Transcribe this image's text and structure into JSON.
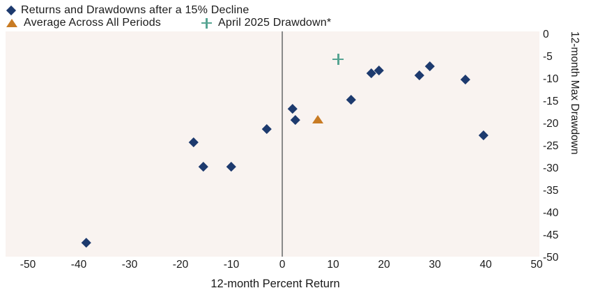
{
  "legend": {
    "series1": "Returns and Drawdowns after a 15% Decline",
    "series2": "Average Across All Periods",
    "series3": "April 2025 Drawdown*"
  },
  "colors": {
    "navy": "#1d3a6e",
    "orange": "#c87b23",
    "teal": "#56a492",
    "plot_bg": "#f9f3f0",
    "zero_line": "#8a8a8a",
    "text": "#1a1a1a"
  },
  "chart_data": {
    "type": "scatter",
    "title": "Returns and Drawdowns after a 15% Decline",
    "xlabel": "12-month Percent Return",
    "ylabel": "12-month Max Drawdown",
    "xlim": [
      -50,
      50
    ],
    "ylim": [
      -50,
      0
    ],
    "x_ticks": [
      -50,
      -40,
      -30,
      -20,
      -10,
      0,
      10,
      20,
      30,
      40,
      50
    ],
    "y_ticks": [
      0,
      -5,
      -10,
      -15,
      -20,
      -25,
      -30,
      -35,
      -40,
      -45,
      -50
    ],
    "grid": false,
    "annotations": [
      "vertical reference line at x = 0"
    ],
    "legend_position": "top-left",
    "series": [
      {
        "name": "Returns and Drawdowns after a 15% Decline",
        "marker": "diamond",
        "color": "#1d3a6e",
        "points": [
          [
            -38.5,
            -46.5
          ],
          [
            -17.5,
            -24
          ],
          [
            -15.5,
            -29.5
          ],
          [
            -10,
            -29.5
          ],
          [
            -3,
            -21
          ],
          [
            2,
            -16.5
          ],
          [
            2.5,
            -19
          ],
          [
            13.5,
            -14.5
          ],
          [
            17.5,
            -8.5
          ],
          [
            19,
            -8
          ],
          [
            27,
            -9
          ],
          [
            29,
            -7
          ],
          [
            36,
            -10
          ],
          [
            39.5,
            -22.5
          ]
        ]
      },
      {
        "name": "Average Across All Periods",
        "marker": "triangle",
        "color": "#c87b23",
        "points": [
          [
            7,
            -19
          ]
        ]
      },
      {
        "name": "April 2025 Drawdown*",
        "marker": "plus",
        "color": "#56a492",
        "points": [
          [
            11,
            -5.5
          ]
        ]
      }
    ]
  }
}
